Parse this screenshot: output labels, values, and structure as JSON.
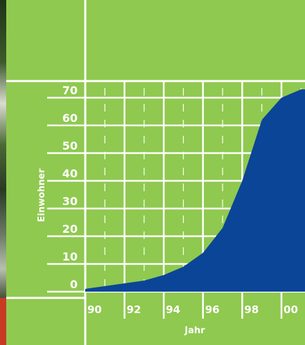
{
  "chart_data": {
    "type": "area",
    "xlabel": "Jahr",
    "ylabel": "Einwohner",
    "x_tick_labels": [
      "90",
      "92",
      "94",
      "96",
      "98",
      "00"
    ],
    "y_ticks": [
      0,
      10,
      20,
      30,
      40,
      50,
      60,
      70
    ],
    "y_tick_labels": [
      "0",
      "10",
      "20",
      "30",
      "40",
      "50",
      "60",
      "70"
    ],
    "x": [
      1990,
      1991,
      1992,
      1993,
      1994,
      1995,
      1996,
      1997,
      1998,
      1999,
      2000,
      2001
    ],
    "series": [
      {
        "values": [
          1,
          2,
          3,
          4,
          6,
          9,
          14,
          23,
          40,
          62,
          70,
          73
        ]
      }
    ],
    "xlim": [
      1990,
      2001.2
    ],
    "ylim": [
      0,
      76
    ],
    "grid": true,
    "colors": {
      "area": "#0b4597",
      "background": "#8fc94f",
      "grid": "#ffffff",
      "text": "#ffffff"
    }
  }
}
